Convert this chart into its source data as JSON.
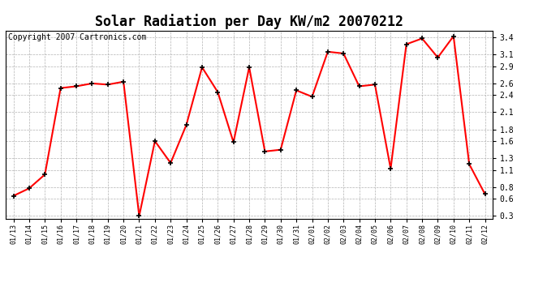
{
  "title": "Solar Radiation per Day KW/m2 20070212",
  "copyright": "Copyright 2007 Cartronics.com",
  "dates": [
    "01/13",
    "01/14",
    "01/15",
    "01/16",
    "01/17",
    "01/18",
    "01/19",
    "01/20",
    "01/21",
    "01/22",
    "01/23",
    "01/24",
    "01/25",
    "01/26",
    "01/27",
    "01/28",
    "01/29",
    "01/30",
    "01/31",
    "02/01",
    "02/02",
    "02/03",
    "02/04",
    "02/05",
    "02/06",
    "02/07",
    "02/08",
    "02/09",
    "02/10",
    "02/11",
    "02/12"
  ],
  "values": [
    0.65,
    0.78,
    1.02,
    2.52,
    2.55,
    2.6,
    2.58,
    2.63,
    0.3,
    1.6,
    1.22,
    1.88,
    2.88,
    2.45,
    1.58,
    2.88,
    1.42,
    1.45,
    2.48,
    2.37,
    3.15,
    3.12,
    2.55,
    2.58,
    1.12,
    3.28,
    3.38,
    3.05,
    3.42,
    1.2,
    0.68
  ],
  "line_color": "#ff0000",
  "marker_color": "#000000",
  "bg_color": "#ffffff",
  "grid_color": "#aaaaaa",
  "yticks": [
    0.3,
    0.6,
    0.8,
    1.1,
    1.3,
    1.6,
    1.8,
    2.1,
    2.4,
    2.6,
    2.9,
    3.1,
    3.4
  ],
  "ymin": 0.25,
  "ymax": 3.52,
  "title_fontsize": 12,
  "copyright_fontsize": 7,
  "tick_fontsize": 7,
  "xtick_fontsize": 6
}
